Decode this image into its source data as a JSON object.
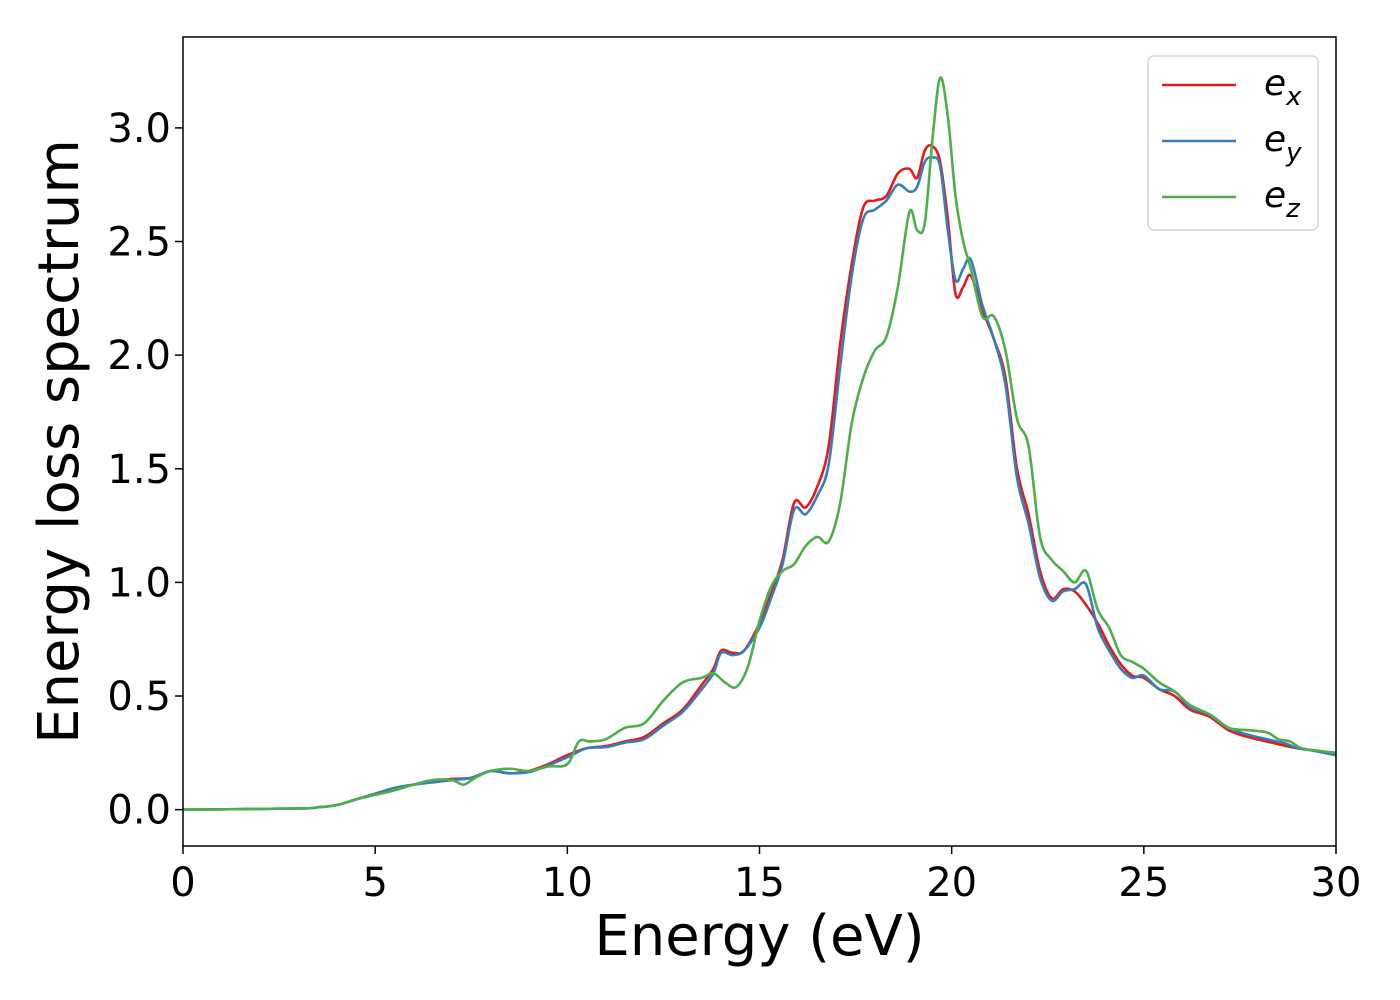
{
  "chart_data": {
    "type": "line",
    "title": "",
    "xlabel": "Energy (eV)",
    "ylabel": "Energy loss spectrum",
    "xlim": [
      0,
      30
    ],
    "ylim": [
      -0.16,
      3.4
    ],
    "xticks": [
      0,
      5,
      10,
      15,
      20,
      25,
      30
    ],
    "yticks": [
      0.0,
      0.5,
      1.0,
      1.5,
      2.0,
      2.5,
      3.0
    ],
    "xtick_labels": [
      "0",
      "5",
      "10",
      "15",
      "20",
      "25",
      "30"
    ],
    "ytick_labels": [
      "0.0",
      "0.5",
      "1.0",
      "1.5",
      "2.0",
      "2.5",
      "3.0"
    ],
    "grid": false,
    "legend_position": "top-right",
    "series": [
      {
        "name": "e_x",
        "label_base": "e",
        "label_sub": "x",
        "color": "#e41a1c",
        "x": [
          0,
          3,
          3.5,
          4,
          4.5,
          5,
          5.5,
          6,
          6.5,
          7,
          7.5,
          8,
          8.5,
          9,
          9.5,
          10,
          10.5,
          11,
          11.5,
          12,
          12.5,
          13,
          13.5,
          13.8,
          14,
          14.3,
          14.6,
          15,
          15.3,
          15.6,
          15.9,
          16.2,
          16.5,
          16.8,
          17.1,
          17.4,
          17.7,
          18.0,
          18.3,
          18.6,
          18.9,
          19.1,
          19.3,
          19.5,
          19.7,
          19.9,
          20.1,
          20.3,
          20.5,
          20.8,
          21.1,
          21.4,
          21.7,
          22.0,
          22.3,
          22.6,
          22.9,
          23.2,
          23.5,
          23.8,
          24.1,
          24.4,
          24.7,
          25.0,
          25.4,
          25.8,
          26.2,
          26.7,
          27.2,
          27.7,
          28.2,
          28.7,
          29.0,
          29.4,
          30.0
        ],
        "y": [
          0.0,
          0.005,
          0.01,
          0.02,
          0.045,
          0.07,
          0.095,
          0.11,
          0.125,
          0.135,
          0.14,
          0.17,
          0.16,
          0.17,
          0.2,
          0.24,
          0.27,
          0.28,
          0.3,
          0.32,
          0.38,
          0.44,
          0.55,
          0.62,
          0.7,
          0.69,
          0.7,
          0.82,
          0.95,
          1.1,
          1.35,
          1.33,
          1.42,
          1.6,
          2.05,
          2.4,
          2.65,
          2.68,
          2.7,
          2.8,
          2.82,
          2.78,
          2.9,
          2.92,
          2.85,
          2.6,
          2.27,
          2.3,
          2.35,
          2.2,
          2.07,
          1.9,
          1.5,
          1.3,
          1.05,
          0.93,
          0.97,
          0.96,
          0.9,
          0.82,
          0.72,
          0.64,
          0.59,
          0.58,
          0.53,
          0.5,
          0.44,
          0.41,
          0.35,
          0.32,
          0.3,
          0.28,
          0.27,
          0.26,
          0.24
        ]
      },
      {
        "name": "e_y",
        "label_base": "e",
        "label_sub": "y",
        "color": "#377eb8",
        "x": [
          0,
          3,
          3.5,
          4,
          4.5,
          5,
          5.5,
          6,
          6.5,
          7,
          7.5,
          8,
          8.5,
          9,
          9.5,
          10,
          10.5,
          11,
          11.5,
          12,
          12.5,
          13,
          13.5,
          13.8,
          14,
          14.3,
          14.6,
          15,
          15.3,
          15.6,
          15.9,
          16.2,
          16.5,
          16.8,
          17.1,
          17.4,
          17.7,
          18.0,
          18.3,
          18.6,
          18.9,
          19.1,
          19.3,
          19.5,
          19.7,
          19.9,
          20.1,
          20.3,
          20.5,
          20.8,
          21.1,
          21.4,
          21.7,
          22.0,
          22.3,
          22.6,
          22.9,
          23.2,
          23.5,
          23.8,
          24.1,
          24.4,
          24.7,
          25.0,
          25.4,
          25.8,
          26.2,
          26.7,
          27.2,
          27.7,
          28.2,
          28.7,
          29.0,
          29.4,
          30.0
        ],
        "y": [
          0.0,
          0.005,
          0.01,
          0.02,
          0.045,
          0.07,
          0.095,
          0.11,
          0.12,
          0.13,
          0.14,
          0.17,
          0.16,
          0.165,
          0.195,
          0.23,
          0.27,
          0.275,
          0.295,
          0.31,
          0.37,
          0.43,
          0.53,
          0.6,
          0.69,
          0.68,
          0.7,
          0.8,
          0.93,
          1.08,
          1.32,
          1.3,
          1.38,
          1.52,
          1.95,
          2.35,
          2.6,
          2.64,
          2.68,
          2.75,
          2.72,
          2.74,
          2.85,
          2.87,
          2.83,
          2.55,
          2.33,
          2.38,
          2.42,
          2.22,
          2.07,
          1.87,
          1.46,
          1.26,
          1.02,
          0.92,
          0.96,
          0.97,
          0.99,
          0.8,
          0.7,
          0.62,
          0.58,
          0.59,
          0.53,
          0.52,
          0.45,
          0.42,
          0.36,
          0.33,
          0.31,
          0.29,
          0.27,
          0.26,
          0.24
        ]
      },
      {
        "name": "e_z",
        "label_base": "e",
        "label_sub": "z",
        "color": "#4daf4a",
        "x": [
          0,
          3,
          3.5,
          4,
          4.5,
          5,
          5.5,
          6,
          6.5,
          7,
          7.3,
          7.6,
          8,
          8.5,
          9,
          9.5,
          10,
          10.3,
          10.6,
          11,
          11.5,
          12,
          12.5,
          13,
          13.5,
          13.8,
          14.1,
          14.4,
          14.7,
          15,
          15.3,
          15.6,
          15.9,
          16.2,
          16.5,
          16.8,
          17.1,
          17.4,
          17.7,
          18.0,
          18.3,
          18.6,
          18.9,
          19.1,
          19.3,
          19.5,
          19.7,
          19.9,
          20.1,
          20.3,
          20.5,
          20.8,
          21.1,
          21.4,
          21.7,
          22.0,
          22.3,
          22.6,
          22.9,
          23.2,
          23.5,
          23.8,
          24.1,
          24.4,
          24.7,
          25.0,
          25.4,
          25.8,
          26.2,
          26.7,
          27.2,
          27.7,
          28.2,
          28.5,
          28.8,
          29.1,
          29.5,
          30.0
        ],
        "y": [
          0.0,
          0.005,
          0.01,
          0.02,
          0.045,
          0.065,
          0.085,
          0.11,
          0.13,
          0.13,
          0.11,
          0.14,
          0.17,
          0.18,
          0.17,
          0.19,
          0.2,
          0.3,
          0.3,
          0.31,
          0.36,
          0.38,
          0.48,
          0.56,
          0.58,
          0.6,
          0.56,
          0.54,
          0.63,
          0.83,
          0.98,
          1.05,
          1.08,
          1.16,
          1.2,
          1.18,
          1.35,
          1.7,
          1.9,
          2.02,
          2.08,
          2.3,
          2.63,
          2.55,
          2.58,
          2.95,
          3.22,
          3.05,
          2.7,
          2.5,
          2.38,
          2.17,
          2.17,
          2.02,
          1.72,
          1.6,
          1.2,
          1.1,
          1.05,
          1.0,
          1.05,
          0.88,
          0.8,
          0.68,
          0.65,
          0.62,
          0.56,
          0.52,
          0.46,
          0.42,
          0.36,
          0.35,
          0.34,
          0.31,
          0.3,
          0.27,
          0.26,
          0.25
        ]
      }
    ]
  }
}
